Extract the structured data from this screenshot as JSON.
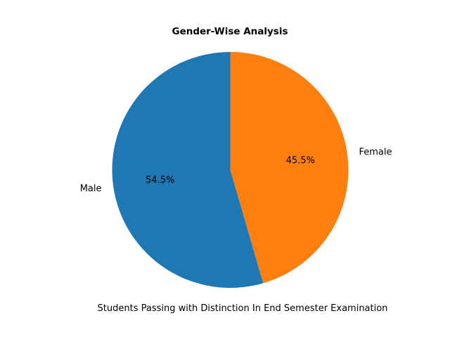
{
  "chart_data": {
    "type": "pie",
    "title": "Gender-Wise Analysis",
    "xlabel": "Students Passing with Distinction In End Semester Examination",
    "slices": [
      {
        "label": "Male",
        "value": 54.5,
        "pct_label": "54.5%",
        "color": "#1f77b4"
      },
      {
        "label": "Female",
        "value": 45.5,
        "pct_label": "45.5%",
        "color": "#ff7f0e"
      }
    ],
    "start_angle": "top",
    "direction": "counterclockwise"
  }
}
